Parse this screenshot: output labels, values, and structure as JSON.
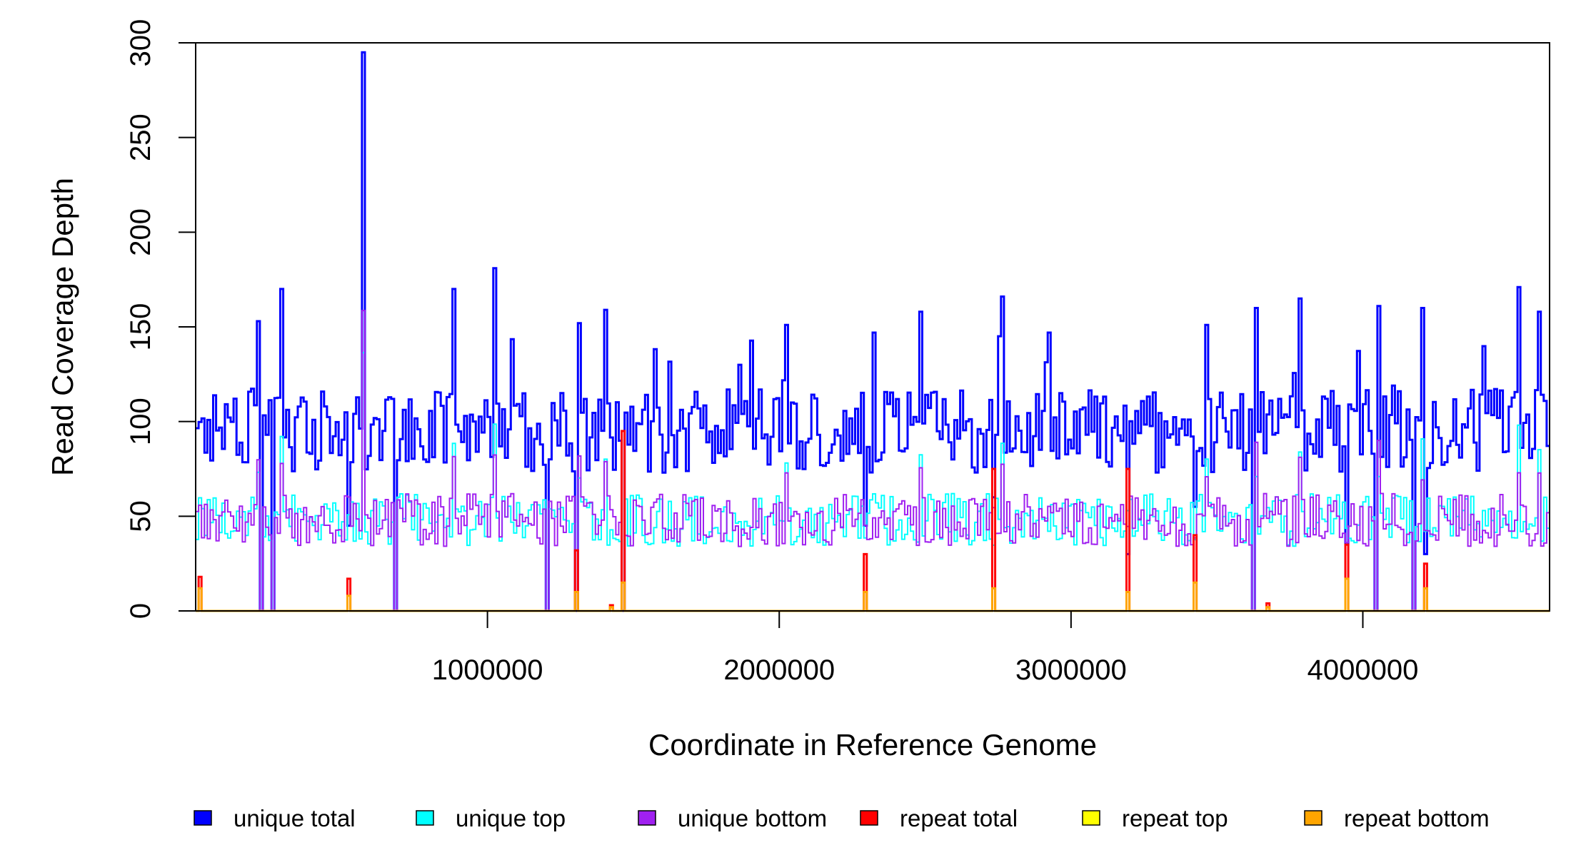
{
  "chart_data": {
    "type": "line",
    "title": "",
    "xlabel": "Coordinate in Reference Genome",
    "ylabel": "Read Coverage Depth",
    "xlim": [
      0,
      4640000
    ],
    "ylim": [
      0,
      300
    ],
    "x_ticks": [
      1000000,
      2000000,
      3000000,
      4000000
    ],
    "x_tick_labels": [
      "1000000",
      "2000000",
      "3000000",
      "4000000"
    ],
    "y_ticks": [
      0,
      50,
      100,
      150,
      200,
      250,
      300
    ],
    "y_tick_labels": [
      "0",
      "50",
      "100",
      "150",
      "200",
      "250",
      "300"
    ],
    "legend_position": "bottom",
    "grid": false,
    "bin_size": 10000,
    "series": [
      {
        "name": "unique total",
        "color": "#0000ff"
      },
      {
        "name": "unique top",
        "color": "#00ffff"
      },
      {
        "name": "unique bottom",
        "color": "#a020f0"
      },
      {
        "name": "repeat total",
        "color": "#ff0000"
      },
      {
        "name": "repeat top",
        "color": "#ffff00"
      },
      {
        "name": "repeat bottom",
        "color": "#ffa500"
      }
    ],
    "unique_total_profile": {
      "baseline": 95,
      "noise_amplitude": 22,
      "peaks": [
        {
          "x": 570000,
          "y": 295
        },
        {
          "x": 1020000,
          "y": 181
        },
        {
          "x": 290000,
          "y": 170
        },
        {
          "x": 880000,
          "y": 170
        },
        {
          "x": 4530000,
          "y": 171
        },
        {
          "x": 2760000,
          "y": 166
        },
        {
          "x": 3780000,
          "y": 165
        },
        {
          "x": 4050000,
          "y": 161
        },
        {
          "x": 4200000,
          "y": 160
        },
        {
          "x": 3630000,
          "y": 160
        },
        {
          "x": 1400000,
          "y": 159
        },
        {
          "x": 2480000,
          "y": 158
        },
        {
          "x": 4600000,
          "y": 158
        },
        {
          "x": 210000,
          "y": 153
        },
        {
          "x": 1310000,
          "y": 152
        },
        {
          "x": 2020000,
          "y": 151
        },
        {
          "x": 2320000,
          "y": 147
        },
        {
          "x": 2920000,
          "y": 147
        },
        {
          "x": 3460000,
          "y": 151
        }
      ],
      "dropouts": [
        225000,
        260000,
        680000,
        1200000,
        1300000,
        1460000,
        3620000,
        4040000,
        4170000
      ],
      "dips": [
        {
          "x": 2290000,
          "y": 45
        },
        {
          "x": 2730000,
          "y": 60
        },
        {
          "x": 3190000,
          "y": 30
        },
        {
          "x": 3420000,
          "y": 55
        },
        {
          "x": 3940000,
          "y": 35
        },
        {
          "x": 4210000,
          "y": 30
        },
        {
          "x": 520000,
          "y": 45
        }
      ]
    },
    "strand_profile": {
      "baseline": 48,
      "noise_amplitude": 14
    },
    "repeat_spikes": [
      {
        "x": 10000,
        "total": 18,
        "bottom": 12
      },
      {
        "x": 520000,
        "total": 17,
        "bottom": 8
      },
      {
        "x": 1300000,
        "total": 32,
        "bottom": 10
      },
      {
        "x": 1420000,
        "total": 3,
        "bottom": 2
      },
      {
        "x": 1460000,
        "total": 95,
        "bottom": 15
      },
      {
        "x": 2290000,
        "total": 30,
        "bottom": 10
      },
      {
        "x": 2730000,
        "total": 75,
        "bottom": 12
      },
      {
        "x": 3190000,
        "total": 75,
        "bottom": 10
      },
      {
        "x": 3420000,
        "total": 40,
        "bottom": 15
      },
      {
        "x": 3670000,
        "total": 4,
        "bottom": 2
      },
      {
        "x": 3940000,
        "total": 35,
        "bottom": 17
      },
      {
        "x": 4210000,
        "total": 25,
        "bottom": 12
      }
    ]
  }
}
